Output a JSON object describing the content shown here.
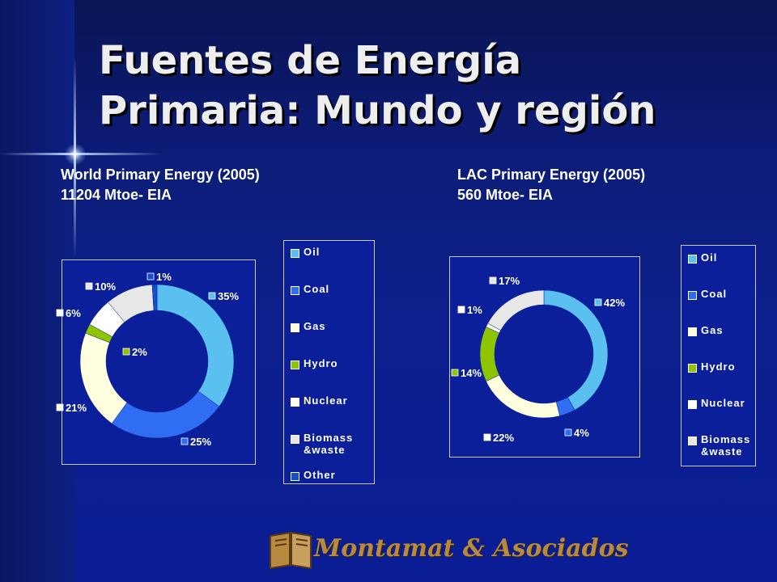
{
  "slide": {
    "title_line1": "Fuentes de Energía",
    "title_line2": "Primaria: Mundo y región",
    "world_subtitle_line1": "World Primary Energy (2005)",
    "world_subtitle_line2": "11204 Mtoe- EIA",
    "lac_subtitle_line1": "LAC Primary Energy (2005)",
    "lac_subtitle_line2": "560 Mtoe- EIA",
    "logo_text": "Montamat & Asociados"
  },
  "chart_data": [
    {
      "type": "pie",
      "style": "donut",
      "categories": [
        "Oil",
        "Coal",
        "Gas",
        "Hydro",
        "Nuclear",
        "Biomass\n&waste",
        "Other"
      ],
      "values": [
        35,
        25,
        21,
        2,
        6,
        10,
        1
      ],
      "labels": [
        "35%",
        "25%",
        "21%",
        "2%",
        "6%",
        "10%",
        "1%"
      ],
      "colors": [
        "#5ac0f0",
        "#2f6ef2",
        "#ffffe0",
        "#8fc400",
        "#ffffff",
        "#e8e8e8",
        "#1650c8"
      ],
      "legend_position": "right"
    },
    {
      "type": "pie",
      "style": "donut",
      "categories": [
        "Oil",
        "Coal",
        "Gas",
        "Hydro",
        "Nuclear",
        "Biomass\n&waste"
      ],
      "values": [
        42,
        4,
        22,
        14,
        1,
        17
      ],
      "labels": [
        "42%",
        "4%",
        "22%",
        "14%",
        "1%",
        "17%"
      ],
      "colors": [
        "#5ac0f0",
        "#2f6ef2",
        "#ffffe0",
        "#8fc400",
        "#ffffff",
        "#e8e8e8"
      ],
      "legend_position": "right"
    }
  ]
}
